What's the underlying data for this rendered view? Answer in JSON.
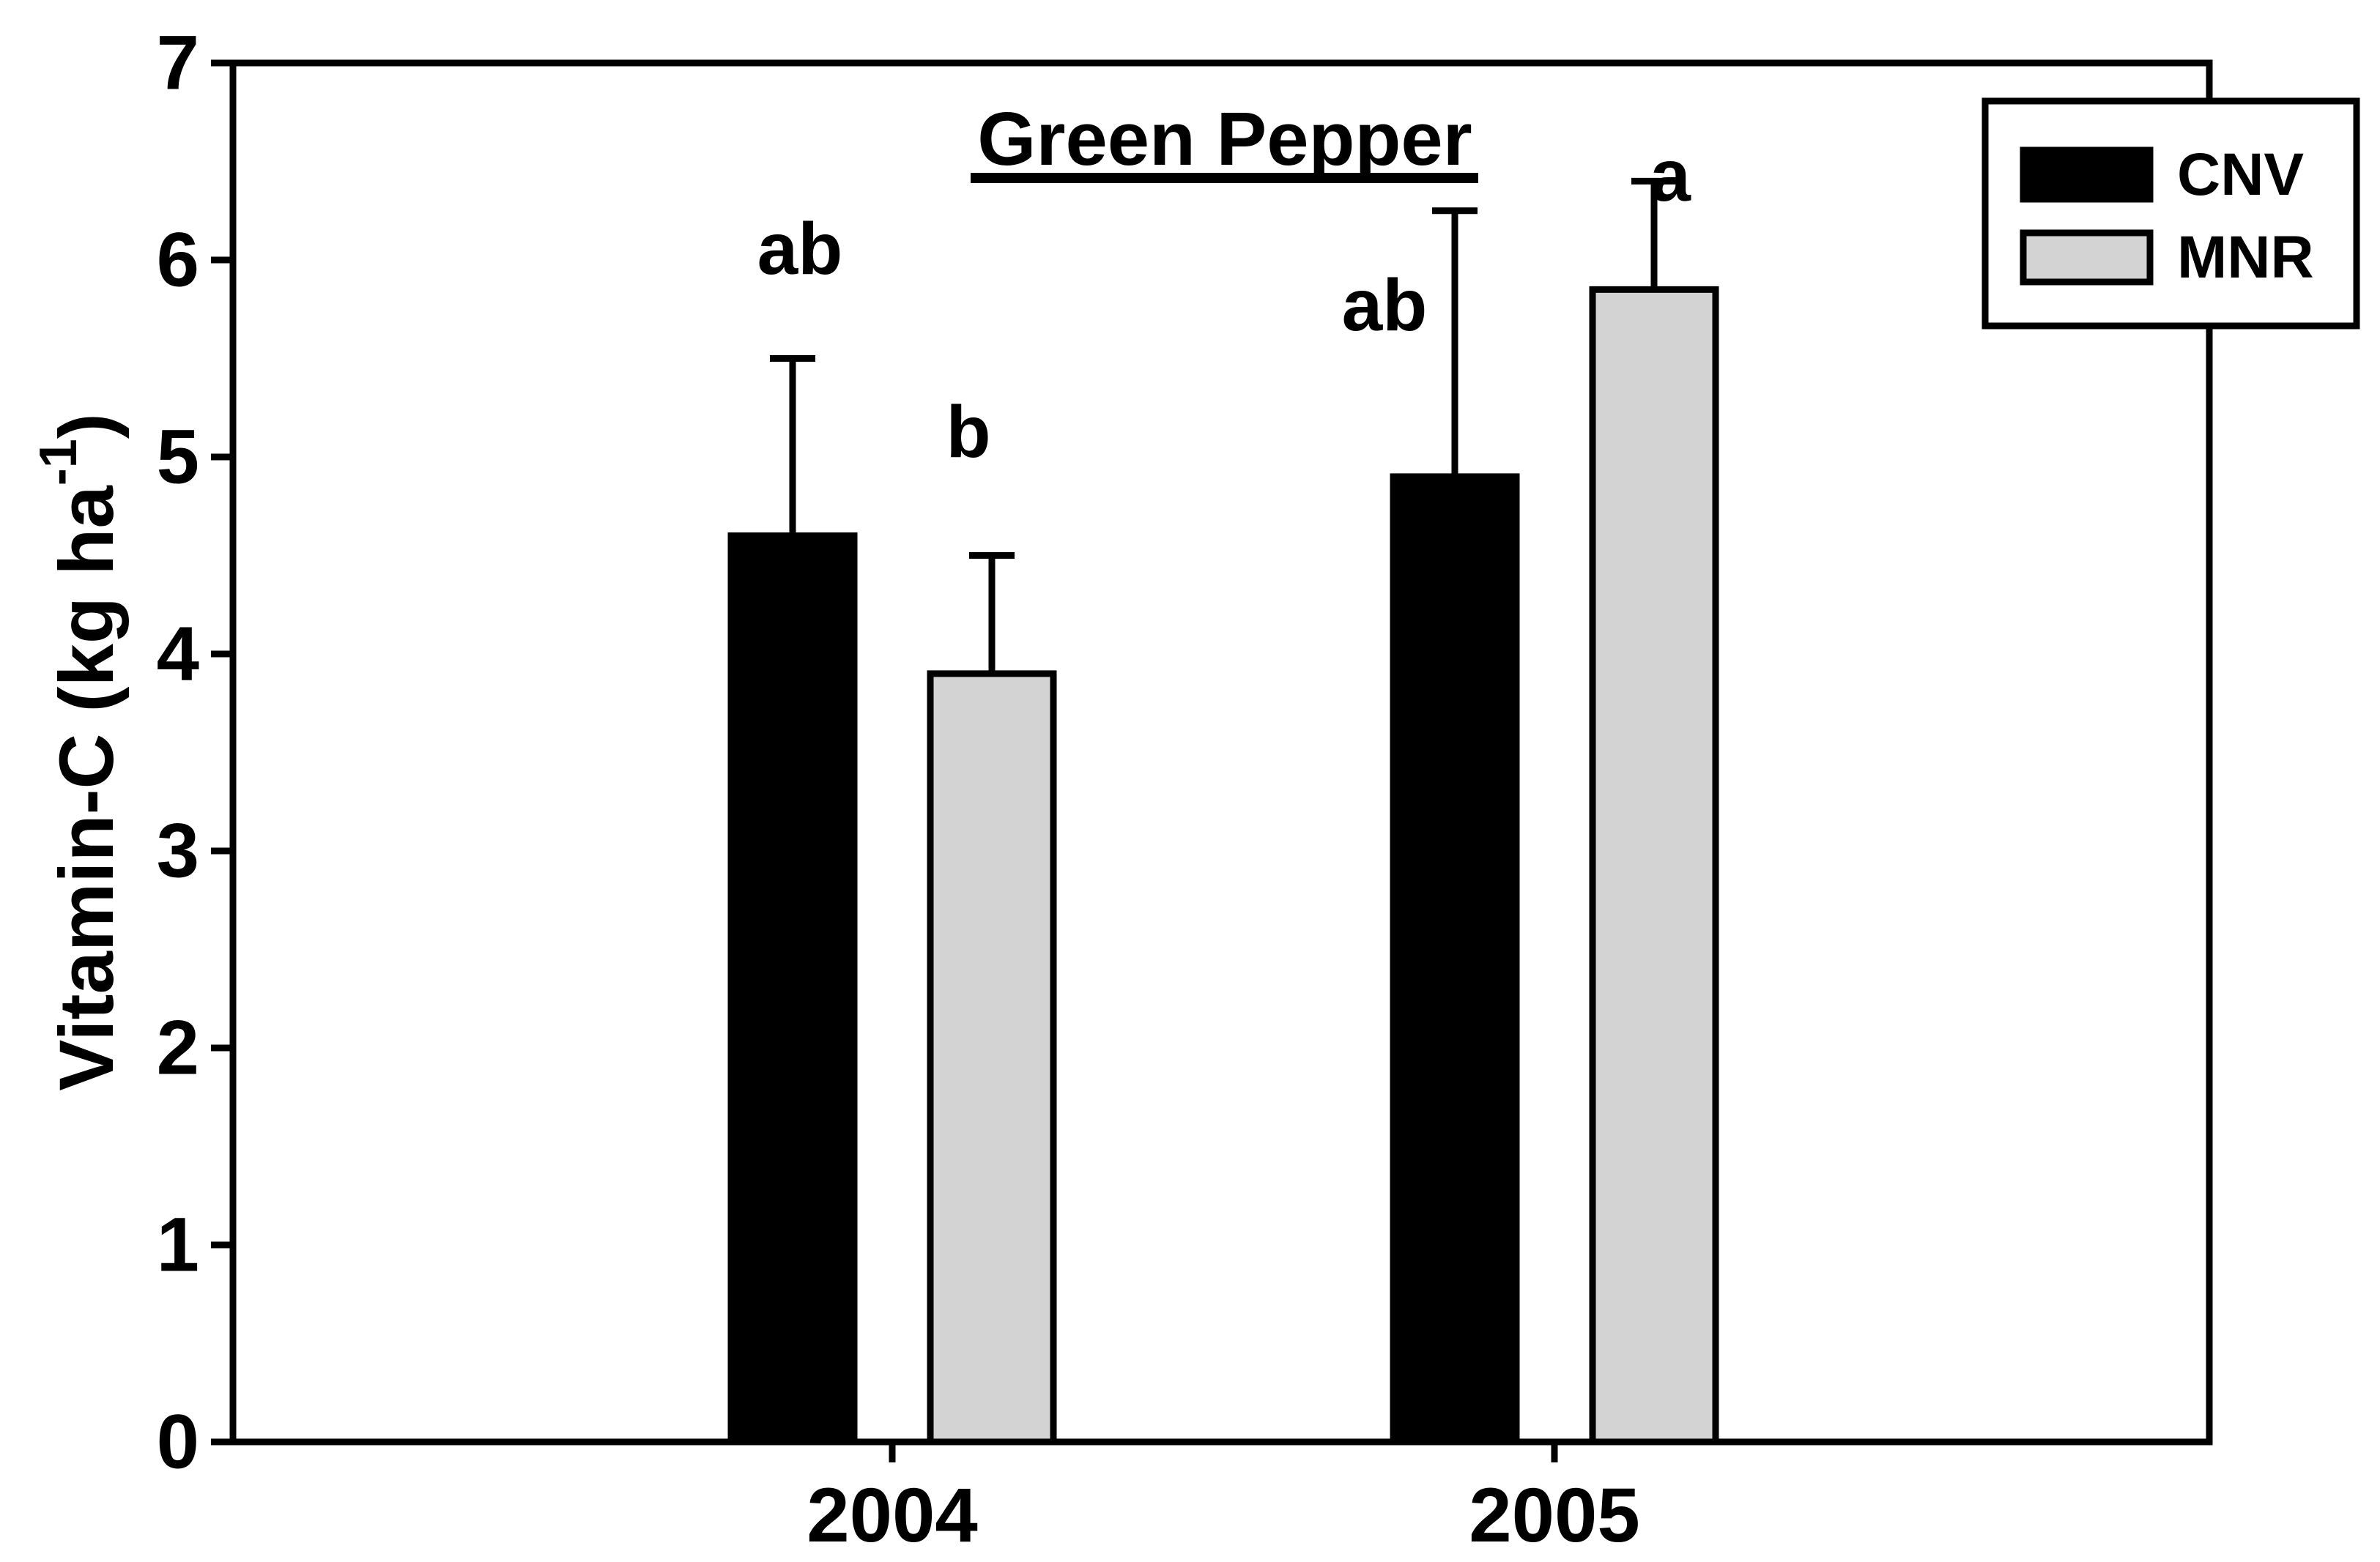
{
  "figure": {
    "title": "Green Pepper",
    "ylabel_prefix": "Vitamin-C (kg ha",
    "ylabel_superscript": "-1",
    "ylabel_suffix": ")",
    "background_color": "#ffffff",
    "axis_color": "#000000"
  },
  "legend": {
    "items": [
      {
        "label": "CNV",
        "swatch_color": "#000000"
      },
      {
        "label": "MNR",
        "swatch_color": "#d3d3d3"
      }
    ]
  },
  "chart_data": {
    "type": "bar",
    "title": "Green Pepper",
    "xlabel": "",
    "ylabel": "Vitamin-C (kg ha^-1)",
    "categories": [
      "2004",
      "2005"
    ],
    "series": [
      {
        "name": "CNV",
        "color": "#000000",
        "values": [
          4.6,
          4.9
        ],
        "errors_plus": [
          0.9,
          1.35
        ],
        "sig_labels": [
          "ab",
          "ab"
        ]
      },
      {
        "name": "MNR",
        "color": "#d3d3d3",
        "values": [
          3.9,
          5.85
        ],
        "errors_plus": [
          0.6,
          0.55
        ],
        "sig_labels": [
          "b",
          "a"
        ]
      }
    ],
    "ylim": [
      0,
      7
    ],
    "yticks": [
      0,
      1,
      2,
      3,
      4,
      5,
      6,
      7
    ],
    "grid": false,
    "error_bars": "upper-only",
    "legend_position": "top-right",
    "bar_border_color": "#000000"
  }
}
